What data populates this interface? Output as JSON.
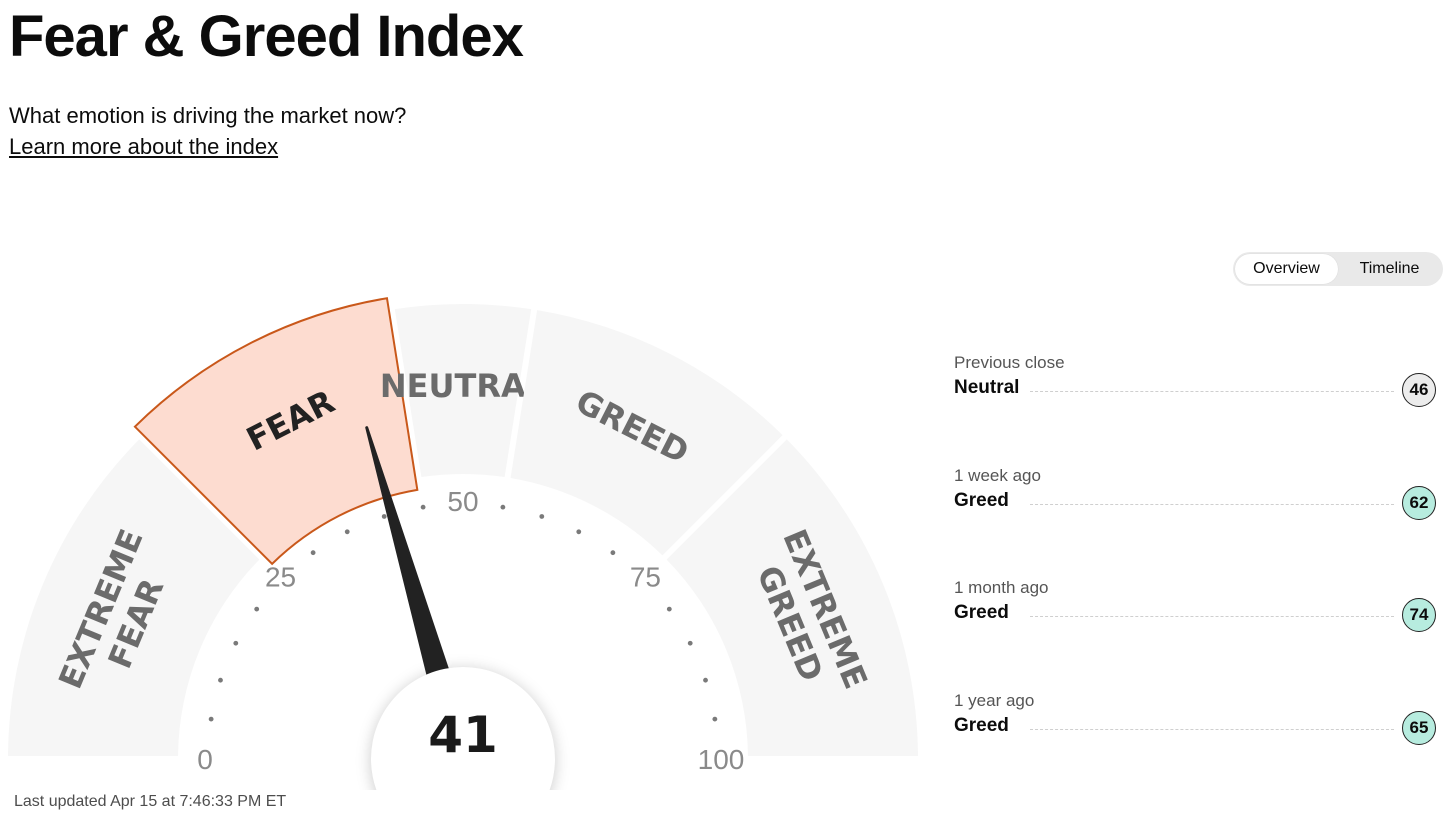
{
  "page": {
    "title": "Fear & Greed Index",
    "subtitle": "What emotion is driving the market now?",
    "learn_more": "Learn more about the index",
    "last_updated": "Last updated Apr 15 at 7:46:33 PM ET"
  },
  "tabs": [
    {
      "label": "Overview",
      "active": true
    },
    {
      "label": "Timeline",
      "active": false
    }
  ],
  "gauge": {
    "value": 41,
    "value_label": "41",
    "active_segment": "Fear",
    "segments": [
      {
        "lines": [
          "EXTREME",
          "FEAR"
        ],
        "range": [
          0,
          25
        ]
      },
      {
        "lines": [
          "FEAR"
        ],
        "range": [
          25,
          45
        ]
      },
      {
        "lines": [
          "NEUTRAL"
        ],
        "range": [
          45,
          55
        ]
      },
      {
        "lines": [
          "GREED"
        ],
        "range": [
          55,
          75
        ]
      },
      {
        "lines": [
          "EXTREME",
          "GREED"
        ],
        "range": [
          75,
          100
        ]
      }
    ],
    "ticks": [
      {
        "value": 0,
        "label": "0"
      },
      {
        "value": 25,
        "label": "25"
      },
      {
        "value": 50,
        "label": "50"
      },
      {
        "value": 75,
        "label": "75"
      },
      {
        "value": 100,
        "label": "100"
      }
    ],
    "colors": {
      "segment_fill": "#f6f6f6",
      "active_fill": "#fddcd0",
      "active_stroke": "#c9581a",
      "segment_text": "#6b6b6b",
      "active_text": "#222222",
      "needle": "#222222",
      "tick_label": "#8a8a8a",
      "tick_dot": "#7a7a7a"
    }
  },
  "history": [
    {
      "label": "Previous close",
      "rating": "Neutral",
      "value": "46",
      "color": "#ececec"
    },
    {
      "label": "1 week ago",
      "rating": "Greed",
      "value": "62",
      "color": "#b7ecdf"
    },
    {
      "label": "1 month ago",
      "rating": "Greed",
      "value": "74",
      "color": "#b7ecdf"
    },
    {
      "label": "1 year ago",
      "rating": "Greed",
      "value": "65",
      "color": "#b7ecdf"
    }
  ]
}
